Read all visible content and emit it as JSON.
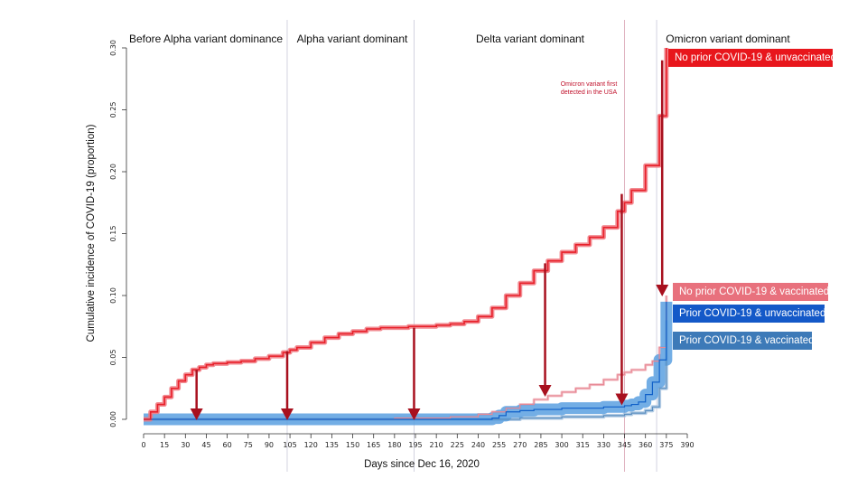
{
  "chart_data": {
    "type": "line",
    "xlabel": "Days since Dec 16, 2020",
    "ylabel": "Cumulative incidence of COVID-19 (proportion)",
    "xlim": [
      0,
      390
    ],
    "ylim": [
      0,
      0.3
    ],
    "x_ticks": [
      0,
      15,
      30,
      45,
      60,
      75,
      90,
      105,
      120,
      135,
      150,
      165,
      180,
      195,
      210,
      225,
      240,
      255,
      270,
      285,
      300,
      315,
      330,
      345,
      360,
      375,
      390
    ],
    "y_ticks": [
      "0.00",
      "0.05",
      "0.10",
      "0.15",
      "0.20",
      "0.25",
      "0.30"
    ],
    "periods": [
      {
        "label": "Before Alpha variant dominance",
        "start": 0,
        "end": 103
      },
      {
        "label": "Alpha variant dominant",
        "start": 103,
        "end": 194
      },
      {
        "label": "Delta variant dominant",
        "start": 194,
        "end": 368
      },
      {
        "label": "Omicron variant dominant",
        "start": 368,
        "end": 390
      }
    ],
    "annotation": {
      "text": [
        "Omicron variant first",
        "detected in the USA"
      ],
      "x": 345
    },
    "series": [
      {
        "name": "No prior COVID-19 & unvaccinated",
        "color": "#e8202a",
        "x": [
          0,
          5,
          10,
          15,
          20,
          25,
          30,
          35,
          40,
          45,
          50,
          60,
          70,
          80,
          90,
          100,
          105,
          110,
          120,
          130,
          140,
          150,
          160,
          170,
          180,
          190,
          200,
          210,
          220,
          230,
          240,
          250,
          260,
          270,
          280,
          290,
          300,
          310,
          320,
          330,
          340,
          345,
          350,
          360,
          370,
          375
        ],
        "y": [
          0.0,
          0.006,
          0.012,
          0.018,
          0.025,
          0.031,
          0.036,
          0.04,
          0.042,
          0.044,
          0.045,
          0.046,
          0.047,
          0.049,
          0.051,
          0.054,
          0.056,
          0.058,
          0.062,
          0.066,
          0.069,
          0.071,
          0.073,
          0.074,
          0.074,
          0.075,
          0.075,
          0.076,
          0.077,
          0.079,
          0.083,
          0.09,
          0.1,
          0.11,
          0.12,
          0.128,
          0.135,
          0.141,
          0.147,
          0.155,
          0.168,
          0.175,
          0.185,
          0.205,
          0.245,
          0.3
        ]
      },
      {
        "name": "No prior COVID-19 & vaccinated",
        "color": "#e88a96",
        "x": [
          0,
          150,
          180,
          200,
          220,
          240,
          250,
          260,
          270,
          280,
          290,
          300,
          310,
          320,
          330,
          340,
          345,
          350,
          360,
          365,
          370,
          375
        ],
        "y": [
          0.0,
          0.0,
          0.001,
          0.001,
          0.002,
          0.004,
          0.006,
          0.009,
          0.012,
          0.016,
          0.019,
          0.022,
          0.025,
          0.028,
          0.032,
          0.036,
          0.038,
          0.04,
          0.044,
          0.047,
          0.058,
          0.1
        ]
      },
      {
        "name": "Prior COVID-19 & unvaccinated",
        "color": "#1060c8",
        "x": [
          0,
          150,
          200,
          240,
          250,
          255,
          260,
          270,
          280,
          290,
          300,
          310,
          320,
          330,
          340,
          345,
          350,
          355,
          360,
          365,
          370,
          375
        ],
        "y": [
          0.0,
          0.0,
          0.0,
          0.0,
          0.001,
          0.003,
          0.006,
          0.007,
          0.008,
          0.008,
          0.009,
          0.009,
          0.009,
          0.01,
          0.01,
          0.011,
          0.012,
          0.014,
          0.02,
          0.03,
          0.048,
          0.095
        ]
      },
      {
        "name": "Prior COVID-19 & vaccinated",
        "color": "#5b8fc0",
        "x": [
          0,
          200,
          250,
          270,
          300,
          330,
          345,
          350,
          360,
          365,
          370,
          375
        ],
        "y": [
          0.0,
          0.0,
          0.0,
          0.001,
          0.002,
          0.003,
          0.004,
          0.005,
          0.007,
          0.01,
          0.025,
          0.08
        ]
      }
    ],
    "arrows": [
      {
        "x": 38,
        "from": 0.04,
        "to": 0.0
      },
      {
        "x": 103,
        "from": 0.055,
        "to": 0.0
      },
      {
        "x": 194,
        "from": 0.074,
        "to": 0.0
      },
      {
        "x": 288,
        "from": 0.126,
        "to": 0.019
      },
      {
        "x": 343,
        "from": 0.182,
        "to": 0.012
      },
      {
        "x": 372,
        "from": 0.29,
        "to": 0.1
      }
    ],
    "vlines": [
      103,
      194,
      345,
      368
    ],
    "legend": [
      {
        "label": "No prior COVID-19 & unvaccinated",
        "color": "#e8161c"
      },
      {
        "label": "No prior COVID-19 & vaccinated",
        "color": "#e8717d"
      },
      {
        "label": "Prior COVID-19 & unvaccinated",
        "color": "#1459c8"
      },
      {
        "label": "Prior COVID-19 & vaccinated",
        "color": "#3d7ab8"
      }
    ],
    "arrow_color": "#a8101e"
  }
}
